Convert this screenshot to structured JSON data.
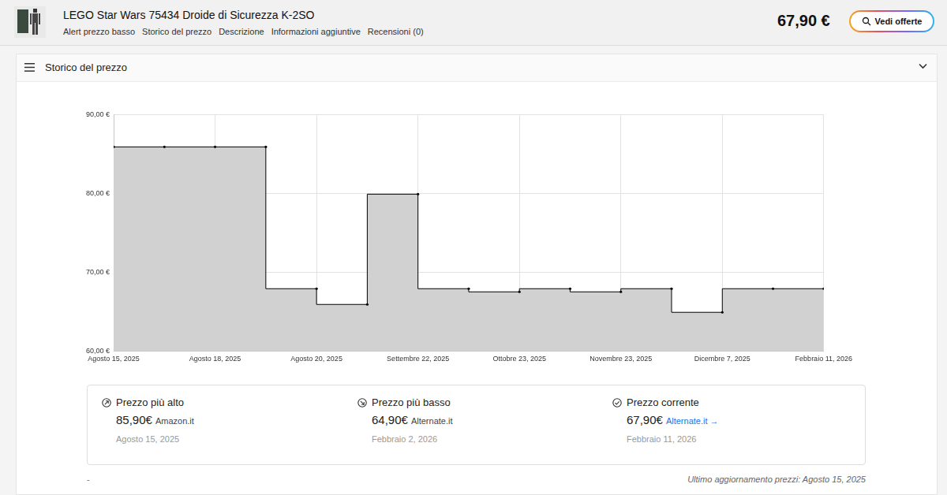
{
  "header": {
    "title": "LEGO Star Wars 75434 Droide di Sicurezza K-2SO",
    "nav": [
      "Alert prezzo basso",
      "Storico del prezzo",
      "Descrizione",
      "Informazioni aggiuntive",
      "Recensioni (0)"
    ],
    "price": "67,90 €",
    "button": "Vedi offerte"
  },
  "panel_title": "Storico del prezzo",
  "chart_data": {
    "type": "line",
    "categories": [
      "Agosto 15, 2025",
      null,
      "Agosto 18, 2025",
      null,
      "Agosto 20, 2025",
      null,
      "Settembre 22, 2025",
      null,
      "Ottobre 23, 2025",
      null,
      "Novembre 23, 2025",
      null,
      "Dicembre 7, 2025",
      null,
      "Febbraio 11, 2026"
    ],
    "values": [
      85.9,
      85.9,
      85.9,
      85.9,
      67.9,
      65.9,
      79.9,
      67.9,
      67.5,
      67.9,
      67.5,
      67.9,
      64.9,
      67.9,
      67.9
    ],
    "color": "#000000",
    "marker": "circle",
    "line_style": "stepped",
    "grid": true,
    "ylim": [
      60,
      90
    ],
    "yticks": [
      {
        "value": 60,
        "label": "60,00 €"
      },
      {
        "value": 70,
        "label": "70,00 €"
      },
      {
        "value": 80,
        "label": "80,00 €"
      },
      {
        "value": 90,
        "label": "90,00 €"
      }
    ]
  },
  "stats": [
    {
      "label": "Prezzo più alto",
      "price": "85,90€",
      "store": "Amazon.it",
      "date": "Agosto 15, 2025"
    },
    {
      "label": "Prezzo più basso",
      "price": "64,90€",
      "store": "Alternate.it",
      "date": "Febbraio 2, 2026"
    },
    {
      "label": "Prezzo corrente",
      "price": "67,90€",
      "store": "Alternate.it →",
      "date": "Febbraio 11, 2026"
    }
  ],
  "footer": {
    "left": "-",
    "right": "Ultimo aggiornamento prezzi: Agosto 15, 2025"
  }
}
